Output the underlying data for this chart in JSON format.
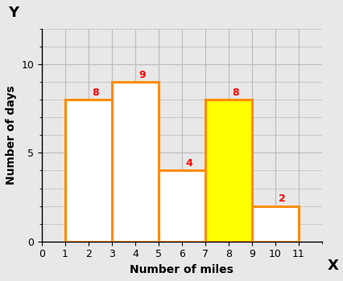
{
  "bins": [
    1,
    3,
    5,
    7,
    9,
    11
  ],
  "heights": [
    8,
    9,
    4,
    8,
    2
  ],
  "bar_colors": [
    "white",
    "white",
    "white",
    "yellow",
    "white"
  ],
  "edge_color": "#FF8C00",
  "label_color": "red",
  "labels": [
    "8",
    "9",
    "4",
    "8",
    "2"
  ],
  "xlabel": "Number of miles",
  "ylabel": "Number of days",
  "xlim": [
    0,
    12
  ],
  "ylim": [
    0,
    12
  ],
  "xticks": [
    0,
    1,
    2,
    3,
    4,
    5,
    6,
    7,
    8,
    9,
    10,
    11
  ],
  "yticks": [
    0,
    5,
    10
  ],
  "grid_color": "#bbbbbb",
  "background_color": "#e8e8e8",
  "plot_bg_color": "#e8e8e8",
  "axis_label_x": "X",
  "axis_label_y": "Y",
  "edge_linewidth": 2.2,
  "label_fontsize": 9,
  "axis_fontsize": 10,
  "tick_fontsize": 9
}
